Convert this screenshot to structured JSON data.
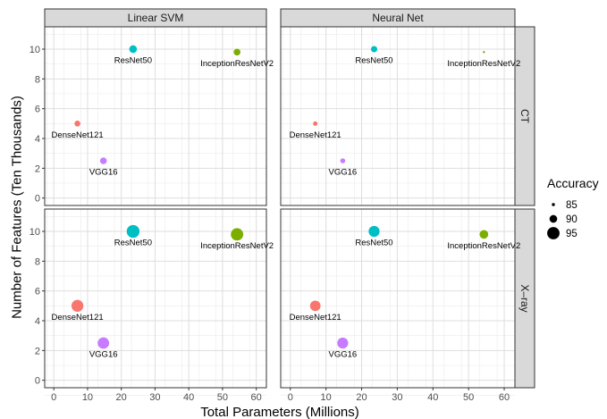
{
  "chart_data": {
    "type": "scatter",
    "xlabel": "Total Parameters (Millions)",
    "ylabel": "Number of Features (Ten Thousands)",
    "xlim": [
      -2.7,
      63
    ],
    "ylim": [
      -0.5,
      11.5
    ],
    "xticks": [
      0,
      10,
      20,
      30,
      40,
      50,
      60
    ],
    "yticks": [
      0,
      2,
      4,
      6,
      8,
      10
    ],
    "grid": true,
    "legend_position": "right",
    "facet_columns": [
      "Linear SVM",
      "Neural Net"
    ],
    "facet_rows": [
      "CT",
      "X–ray"
    ],
    "size_legend": {
      "title": "Accuracy",
      "entries": [
        {
          "label": "85",
          "value": 85
        },
        {
          "label": "90",
          "value": 90
        },
        {
          "label": "95",
          "value": 95
        }
      ]
    },
    "models": [
      {
        "name": "DenseNet121",
        "x": 7.0,
        "y": 5.0,
        "color": "#F8766D"
      },
      {
        "name": "VGG16",
        "x": 14.7,
        "y": 2.5,
        "color": "#C77CFF"
      },
      {
        "name": "ResNet50",
        "x": 23.5,
        "y": 10.0,
        "color": "#00BFC4"
      },
      {
        "name": "InceptionResNetV2",
        "x": 54.3,
        "y": 9.8,
        "color": "#7CAE00"
      }
    ],
    "panels": [
      {
        "row": "CT",
        "col": "Linear SVM",
        "accuracy": [
          88.0,
          89.0,
          90.0,
          89.0
        ]
      },
      {
        "row": "CT",
        "col": "Neural Net",
        "accuracy": [
          86.5,
          87.0,
          88.5,
          84.0
        ]
      },
      {
        "row": "X–ray",
        "col": "Linear SVM",
        "accuracy": [
          94.5,
          94.0,
          95.5,
          95.0
        ]
      },
      {
        "row": "X–ray",
        "col": "Neural Net",
        "accuracy": [
          93.0,
          93.5,
          93.5,
          91.0
        ]
      }
    ]
  }
}
